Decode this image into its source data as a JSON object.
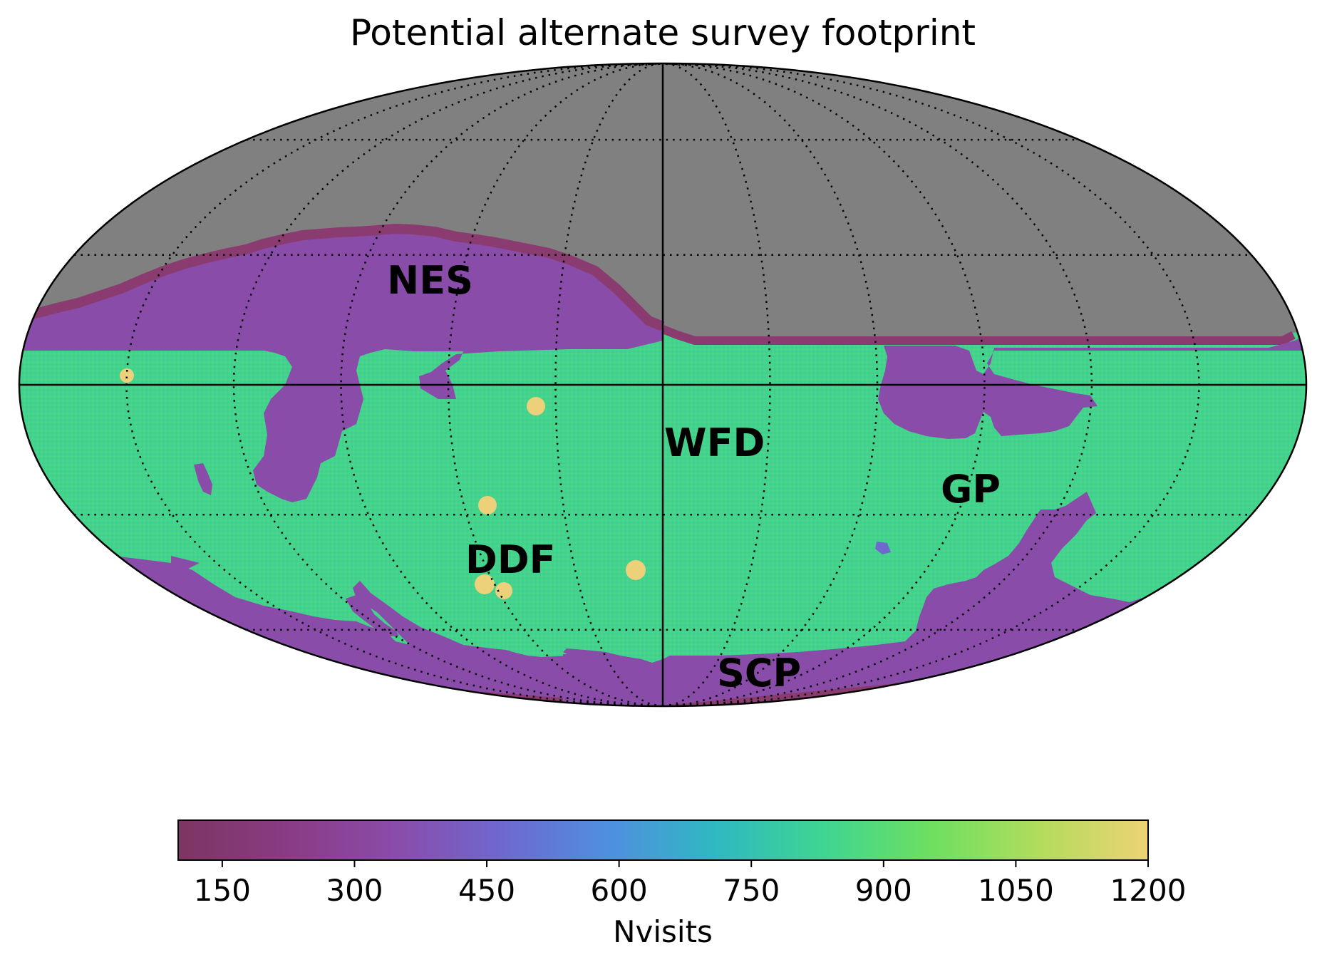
{
  "chart_data": {
    "type": "heatmap",
    "projection": "mollweide",
    "title": "Potential alternate survey footprint",
    "colorbar": {
      "label": "Nvisits",
      "range": [
        100,
        1200
      ],
      "ticks": [
        150,
        300,
        450,
        600,
        750,
        900,
        1050,
        1200
      ],
      "orientation": "horizontal",
      "placement": "bottom",
      "colors": [
        "#7b3662",
        "#8a3b83",
        "#8b4ba9",
        "#6f68cf",
        "#4f8fe0",
        "#2fb9c0",
        "#3fd592",
        "#6edf60",
        "#b3dc5c",
        "#ecd374"
      ]
    },
    "region_labels": [
      "NES",
      "WFD",
      "GP",
      "DDF",
      "SCP"
    ],
    "region_values": {
      "NES": 250,
      "WFD": 850,
      "GP": 250,
      "DDF": 1200,
      "SCP": 250,
      "unobserved": "no data (gray)"
    },
    "colors": {
      "unobserved": "#808080",
      "low_coverage": "#8a4ca9",
      "edge": "#8a3b70",
      "wfd": "#42d28c",
      "ddf": "#edd07a"
    },
    "grid": true
  }
}
